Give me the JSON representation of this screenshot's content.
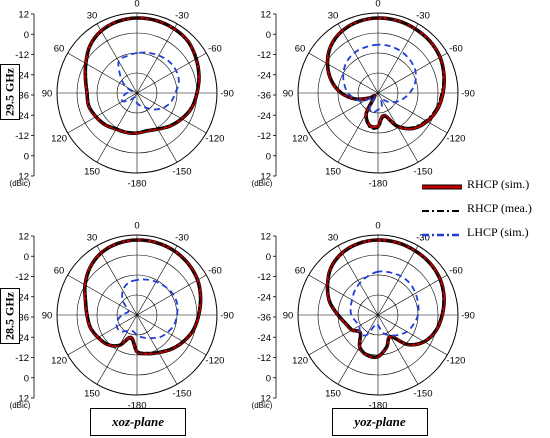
{
  "figure": {
    "row_labels": [
      "29.5 GHz",
      "28.5 GHz"
    ],
    "column_labels": [
      "xoz-plane",
      "yoz-plane"
    ],
    "radial_unit": "(dBic)",
    "radial_ticks": [
      "12",
      "0",
      "-12",
      "-24",
      "-36",
      "-24",
      "-12",
      "0",
      "12"
    ],
    "legend": [
      "RHCP (sim.)",
      "RHCP (mea.)",
      "LHCP (sim.)"
    ],
    "colors": {
      "rhcp_sim": "#c00000",
      "rhcp_mea": "#000000",
      "lhcp_sim": "#1f3fd6",
      "grid": "#000000"
    }
  },
  "chart_data": [
    {
      "type": "polar",
      "frequency": "29.5 GHz",
      "plane": "xoz-plane",
      "r_unit": "dBic",
      "rlim": [
        -36,
        12
      ],
      "r_ticks": [
        12,
        0,
        -12,
        -24,
        -36
      ],
      "theta_ticks": [
        0,
        30,
        60,
        90,
        120,
        150,
        -180,
        -150,
        -120,
        -90,
        -60,
        -30
      ],
      "theta_tick_labels": [
        "0",
        "30",
        "60",
        "90",
        "120",
        "150",
        "-180",
        "-150",
        "-120",
        "-90",
        "-60",
        "-30"
      ],
      "grid": true,
      "theta_deg": [
        0,
        15,
        30,
        45,
        60,
        75,
        90,
        105,
        120,
        135,
        150,
        165,
        180,
        195,
        210,
        225,
        240,
        255,
        270,
        285,
        300,
        315,
        330,
        345
      ],
      "series": [
        {
          "name": "RHCP (sim.)",
          "values": [
            9,
            8.5,
            7,
            4,
            -0.5,
            -4,
            -6,
            -6,
            -7.5,
            -9,
            -11,
            -11.5,
            -12,
            -12.5,
            -11,
            -8,
            -5,
            -2,
            0,
            2.5,
            5,
            7.5,
            8.5,
            9
          ]
        },
        {
          "name": "RHCP (mea.)",
          "values": [
            9,
            8.5,
            6.5,
            3.5,
            -1,
            -4.5,
            -6.5,
            -6.5,
            -8,
            -9.5,
            -11.5,
            -12,
            -12.5,
            -13,
            -11.5,
            -8.5,
            -5.5,
            -2.5,
            -0.5,
            2,
            5,
            7,
            8.5,
            9
          ]
        },
        {
          "name": "LHCP (sim.)",
          "values": [
            -12,
            -13,
            -14,
            -22,
            -28,
            -33,
            -30,
            -27,
            -26,
            -30,
            -33,
            -32,
            -30,
            -28,
            -26,
            -22,
            -18,
            -15,
            -13,
            -10,
            -9,
            -9,
            -10,
            -11
          ]
        }
      ]
    },
    {
      "type": "polar",
      "frequency": "29.5 GHz",
      "plane": "yoz-plane",
      "r_unit": "dBic",
      "rlim": [
        -36,
        12
      ],
      "r_ticks": [
        12,
        0,
        -12,
        -24,
        -36
      ],
      "theta_ticks": [
        0,
        30,
        60,
        90,
        120,
        150,
        -180,
        -150,
        -120,
        -90,
        -60,
        -30
      ],
      "theta_tick_labels": [
        "0",
        "30",
        "60",
        "90",
        "120",
        "150",
        "-180",
        "-150",
        "-120",
        "-90",
        "-60",
        "-30"
      ],
      "grid": true,
      "theta_deg": [
        0,
        15,
        30,
        45,
        60,
        75,
        90,
        105,
        120,
        135,
        150,
        165,
        180,
        195,
        210,
        225,
        240,
        255,
        270,
        285,
        300,
        315,
        330,
        345
      ],
      "series": [
        {
          "name": "RHCP (sim.)",
          "values": [
            9,
            8.5,
            7,
            4,
            -1,
            -7,
            -14,
            -22,
            -30,
            -33,
            -22,
            -16,
            -16,
            -22,
            -13,
            -6,
            -2,
            1,
            3,
            5,
            7,
            8,
            8.5,
            9
          ]
        },
        {
          "name": "RHCP (mea.)",
          "values": [
            9,
            8.5,
            6.5,
            3.5,
            -1.5,
            -7.5,
            -14.5,
            -22.5,
            -30,
            -33,
            -23,
            -15,
            -15,
            -21,
            -13,
            -7,
            -3,
            0,
            2,
            4.5,
            6.5,
            7.5,
            8.5,
            9
          ]
        },
        {
          "name": "LHCP (sim.)",
          "values": [
            -7,
            -7.5,
            -8,
            -9.5,
            -12,
            -15,
            -18,
            -22,
            -26,
            -33,
            -26,
            -24,
            -26,
            -27,
            -32,
            -29,
            -25,
            -21,
            -17,
            -13,
            -10,
            -8.5,
            -7.5,
            -7
          ]
        }
      ]
    },
    {
      "type": "polar",
      "frequency": "28.5 GHz",
      "plane": "xoz-plane",
      "r_unit": "dBic",
      "rlim": [
        -36,
        12
      ],
      "r_ticks": [
        12,
        0,
        -12,
        -24,
        -36
      ],
      "theta_ticks": [
        0,
        30,
        60,
        90,
        120,
        150,
        -180,
        -150,
        -120,
        -90,
        -60,
        -30
      ],
      "theta_tick_labels": [
        "0",
        "30",
        "60",
        "90",
        "120",
        "150",
        "-180",
        "-150",
        "-120",
        "-90",
        "-60",
        "-30"
      ],
      "grid": true,
      "theta_deg": [
        0,
        15,
        30,
        45,
        60,
        75,
        90,
        105,
        120,
        135,
        150,
        165,
        180,
        195,
        210,
        225,
        240,
        255,
        270,
        285,
        300,
        315,
        330,
        345
      ],
      "series": [
        {
          "name": "RHCP (sim.)",
          "values": [
            9,
            8.5,
            7,
            4,
            0,
            -4,
            -6,
            -7,
            -9,
            -11,
            -15,
            -22,
            -14,
            -12,
            -10,
            -7,
            -4,
            -1,
            1,
            3.5,
            6,
            7.5,
            8.5,
            9
          ]
        },
        {
          "name": "RHCP (mea.)",
          "values": [
            9,
            8.5,
            6.5,
            3.5,
            -0.5,
            -4.5,
            -6.5,
            -7.5,
            -9.5,
            -11.5,
            -15.5,
            -21,
            -14.5,
            -12.5,
            -10.5,
            -7.5,
            -4.5,
            -1.5,
            0.5,
            3,
            5.5,
            7,
            8.5,
            9
          ]
        },
        {
          "name": "LHCP (sim.)",
          "values": [
            -15,
            -16,
            -19,
            -24,
            -30,
            -30,
            -27,
            -24,
            -22,
            -22,
            -25,
            -26,
            -24,
            -22,
            -20,
            -17,
            -15,
            -13,
            -12,
            -11,
            -11,
            -12,
            -13,
            -14
          ]
        }
      ]
    },
    {
      "type": "polar",
      "frequency": "28.5 GHz",
      "plane": "yoz-plane",
      "r_unit": "dBic",
      "rlim": [
        -36,
        12
      ],
      "r_ticks": [
        12,
        0,
        -12,
        -24,
        -36
      ],
      "theta_ticks": [
        0,
        30,
        60,
        90,
        120,
        150,
        -180,
        -150,
        -120,
        -90,
        -60,
        -30
      ],
      "theta_tick_labels": [
        "0",
        "30",
        "60",
        "90",
        "120",
        "150",
        "-180",
        "-150",
        "-120",
        "-90",
        "-60",
        "-30"
      ],
      "grid": true,
      "theta_deg": [
        0,
        15,
        30,
        45,
        60,
        75,
        90,
        105,
        120,
        135,
        150,
        165,
        180,
        195,
        210,
        225,
        240,
        255,
        270,
        285,
        300,
        315,
        330,
        345
      ],
      "series": [
        {
          "name": "RHCP (sim.)",
          "values": [
            9,
            8.5,
            7,
            4,
            -1,
            -6,
            -12,
            -16,
            -18,
            -21,
            -14,
            -11,
            -11,
            -16,
            -21,
            -11,
            -4,
            0,
            2.5,
            5,
            7,
            8,
            8.5,
            9
          ]
        },
        {
          "name": "RHCP (mea.)",
          "values": [
            9,
            8.5,
            6.5,
            3.5,
            -1.5,
            -6.5,
            -12.5,
            -16.5,
            -18.5,
            -20.5,
            -14.5,
            -11,
            -11.5,
            -16.5,
            -20.5,
            -11.5,
            -4.5,
            -0.5,
            2,
            4.5,
            6.5,
            7.5,
            8.5,
            9
          ]
        },
        {
          "name": "LHCP (sim.)",
          "values": [
            -10,
            -12,
            -14,
            -16,
            -18,
            -19,
            -20,
            -22,
            -23,
            -21,
            -22,
            -30,
            -30,
            -25,
            -22,
            -19,
            -16,
            -14,
            -12,
            -11,
            -10,
            -9,
            -9,
            -9.5
          ]
        }
      ]
    }
  ]
}
